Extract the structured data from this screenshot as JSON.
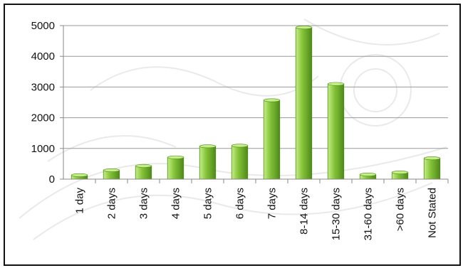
{
  "chart_data": {
    "type": "bar",
    "title": "",
    "xlabel": "",
    "ylabel": "",
    "categories": [
      "1 day",
      "2 days",
      "3 days",
      "4 days",
      "5 days",
      "6 days",
      "7 days",
      "8-14 days",
      "15-30 days",
      "31-60 days",
      ">60 days",
      "Not Stated"
    ],
    "values": [
      130,
      290,
      430,
      710,
      1070,
      1090,
      2570,
      4940,
      3100,
      150,
      220,
      680
    ],
    "ylim": [
      0,
      5000
    ],
    "yticks": [
      0,
      1000,
      2000,
      3000,
      4000,
      5000
    ],
    "ytick_labels": [
      "0",
      "1000",
      "2000",
      "3000",
      "4000",
      "5000"
    ],
    "grid": true,
    "legend": "none",
    "colors": {
      "bar_light": "#c6ee88",
      "bar_mid": "#86c43a",
      "bar_dark": "#4e8a18",
      "grid": "#9a9a9a",
      "axis": "#888888"
    }
  }
}
